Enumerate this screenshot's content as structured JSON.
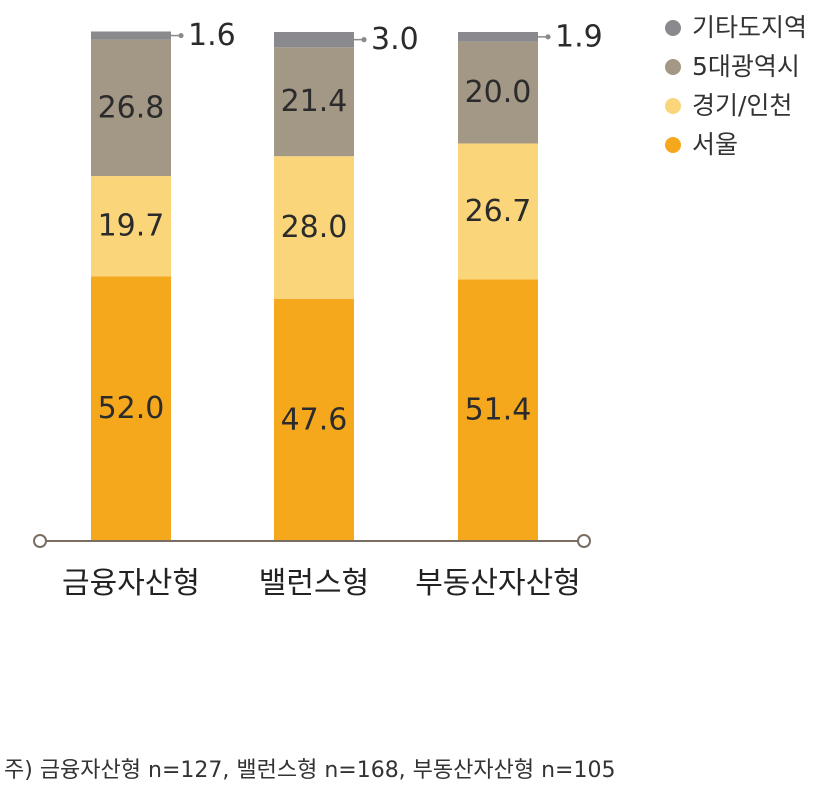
{
  "chart_data": {
    "type": "bar",
    "stacked": true,
    "categories": [
      "금융자산형",
      "밸런스형",
      "부동산자산형"
    ],
    "series": [
      {
        "name": "서울",
        "color": "#F6A81C",
        "values": [
          52.0,
          47.6,
          51.4
        ]
      },
      {
        "name": "경기/인천",
        "color": "#FBD57A",
        "values": [
          19.7,
          28.0,
          26.7
        ]
      },
      {
        "name": "5대광역시",
        "color": "#A39786",
        "values": [
          26.8,
          21.4,
          20.0
        ]
      },
      {
        "name": "기타도지역",
        "color": "#8A8A8E",
        "values": [
          1.6,
          3.0,
          1.9
        ]
      }
    ],
    "value_labels": [
      [
        "52.0",
        "47.6",
        "51.4"
      ],
      [
        "19.7",
        "28.0",
        "26.7"
      ],
      [
        "26.8",
        "21.4",
        "20.0"
      ],
      [
        "1.6",
        "3.0",
        "1.9"
      ]
    ],
    "legend_order": [
      "기타도지역",
      "5대광역시",
      "경기/인천",
      "서울"
    ],
    "legend_position": "top-right",
    "ylim": [
      0,
      100
    ],
    "grid": false,
    "title": "",
    "xlabel": "",
    "ylabel": ""
  },
  "note": "주) 금융자산형 n=127, 밸런스형 n=168, 부동산자산형 n=105"
}
